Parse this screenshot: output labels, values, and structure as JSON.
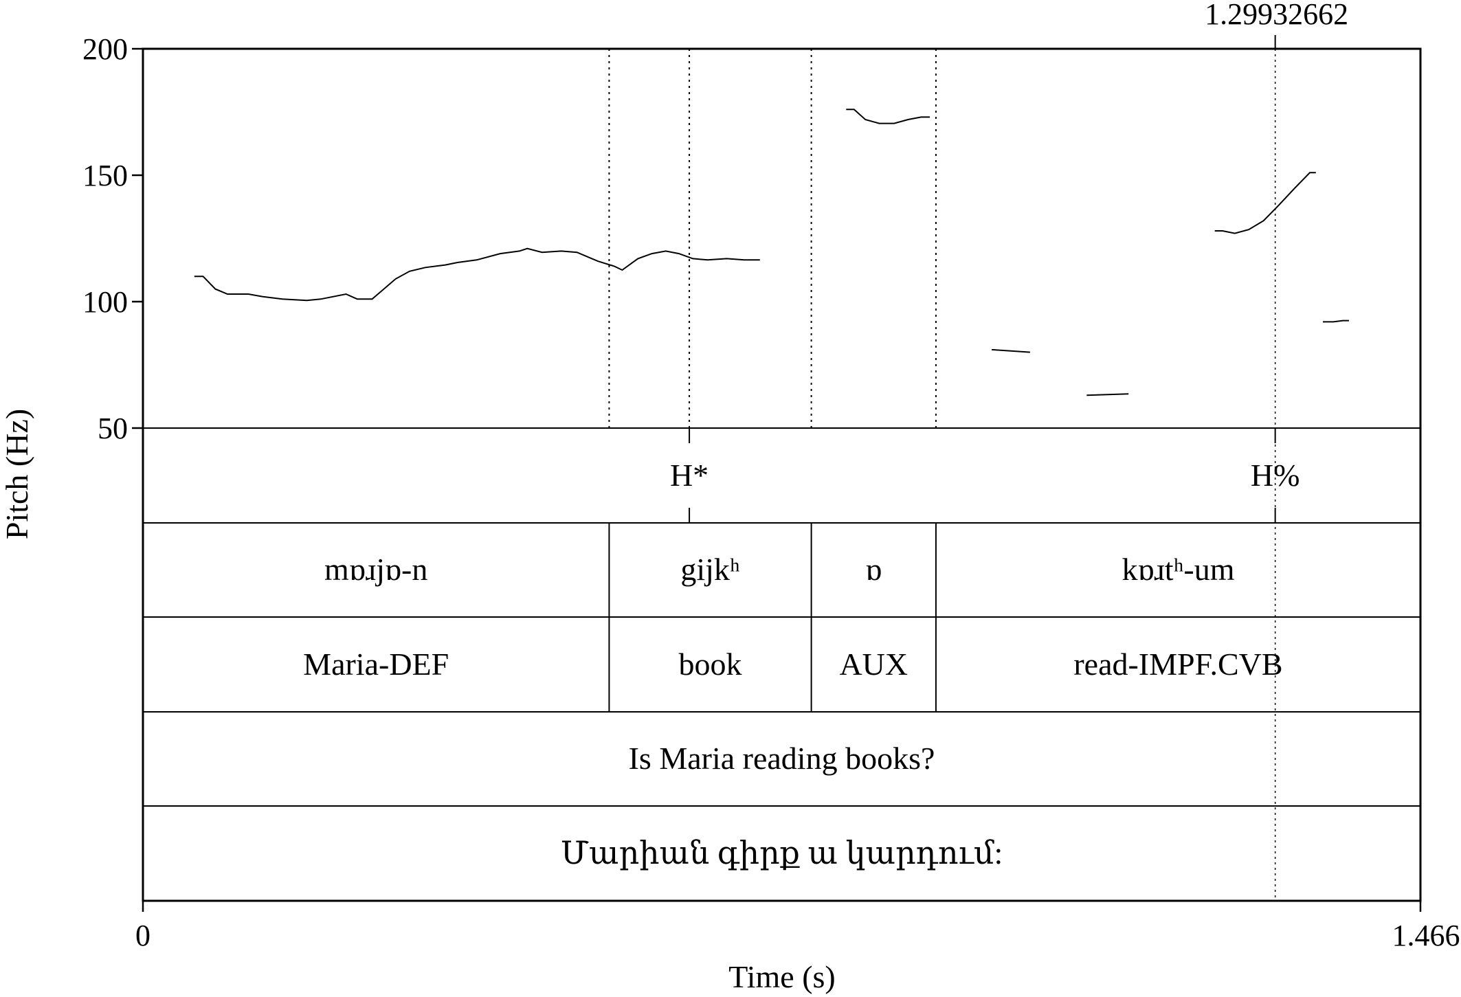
{
  "chart_data": {
    "type": "line",
    "ylabel": "Pitch (Hz)",
    "xlabel": "Time (s)",
    "ylim": [
      50,
      200
    ],
    "xlim": [
      0,
      1.466
    ],
    "y_ticks": [
      "200",
      "150",
      "100",
      "50"
    ],
    "x_start_label": "0",
    "x_end_label": "1.466",
    "cursor": {
      "label": "1.29932662",
      "time": 1.29932662
    },
    "pitch_segments": [
      {
        "name": "segment-1",
        "points": [
          [
            0.059,
            110
          ],
          [
            0.069,
            110
          ],
          [
            0.083,
            105
          ],
          [
            0.097,
            103
          ],
          [
            0.121,
            103
          ],
          [
            0.137,
            102
          ],
          [
            0.16,
            101
          ],
          [
            0.188,
            100.5
          ],
          [
            0.204,
            101
          ],
          [
            0.233,
            103
          ],
          [
            0.246,
            101
          ],
          [
            0.263,
            101
          ],
          [
            0.29,
            109
          ],
          [
            0.306,
            112
          ],
          [
            0.324,
            113.5
          ],
          [
            0.347,
            114.5
          ],
          [
            0.361,
            115.5
          ],
          [
            0.383,
            116.5
          ],
          [
            0.41,
            119
          ],
          [
            0.432,
            120
          ],
          [
            0.441,
            121
          ],
          [
            0.458,
            119.5
          ],
          [
            0.48,
            120
          ],
          [
            0.498,
            119.5
          ],
          [
            0.522,
            116
          ],
          [
            0.541,
            114
          ],
          [
            0.55,
            112.5
          ],
          [
            0.568,
            117
          ],
          [
            0.584,
            119
          ],
          [
            0.6,
            120
          ],
          [
            0.615,
            119
          ],
          [
            0.631,
            117
          ],
          [
            0.648,
            116.5
          ],
          [
            0.67,
            117
          ],
          [
            0.69,
            116.5
          ],
          [
            0.708,
            116.5
          ]
        ]
      },
      {
        "name": "segment-2",
        "points": [
          [
            0.807,
            176
          ],
          [
            0.816,
            176
          ],
          [
            0.829,
            172
          ],
          [
            0.845,
            170.5
          ],
          [
            0.862,
            170.5
          ],
          [
            0.878,
            172
          ],
          [
            0.893,
            173
          ],
          [
            0.903,
            173
          ]
        ]
      },
      {
        "name": "segment-3",
        "points": [
          [
            0.974,
            81
          ],
          [
            0.996,
            80.5
          ],
          [
            1.018,
            80
          ]
        ]
      },
      {
        "name": "segment-4",
        "points": [
          [
            1.083,
            63
          ],
          [
            1.131,
            63.5
          ]
        ]
      },
      {
        "name": "segment-5",
        "points": [
          [
            1.23,
            128
          ],
          [
            1.239,
            128
          ],
          [
            1.253,
            127
          ],
          [
            1.269,
            128.5
          ],
          [
            1.286,
            132
          ],
          [
            1.303,
            138
          ],
          [
            1.322,
            145
          ],
          [
            1.339,
            151
          ],
          [
            1.346,
            151
          ]
        ]
      },
      {
        "name": "segment-6",
        "points": [
          [
            1.354,
            92
          ],
          [
            1.366,
            92
          ],
          [
            1.377,
            92.5
          ],
          [
            1.384,
            92.5
          ]
        ]
      }
    ],
    "pitch_boundaries": [
      0.535,
      0.627,
      0.767,
      0.91
    ],
    "tiers": [
      {
        "name": "tones",
        "boundaries": [],
        "points": [
          {
            "time": 0.627,
            "label": "H*"
          },
          {
            "time": 1.29932662,
            "label": "H%"
          }
        ]
      },
      {
        "name": "transcription",
        "boundaries": [
          0.535,
          0.767,
          0.91
        ],
        "intervals": [
          "mɒɹjɒ-n",
          "gijkʰ",
          "ɒ",
          "kɒɹtʰ-um"
        ]
      },
      {
        "name": "gloss",
        "boundaries": [
          0.535,
          0.767,
          0.91
        ],
        "intervals": [
          "Maria-DEF",
          "book",
          "AUX",
          "read-IMPF.CVB"
        ]
      },
      {
        "name": "translation",
        "boundaries": [],
        "intervals": [
          "Is Maria reading books?"
        ]
      },
      {
        "name": "orthography",
        "boundaries": [],
        "intervals": [
          "Մարիան գիրք ա կարդում:"
        ]
      }
    ]
  }
}
